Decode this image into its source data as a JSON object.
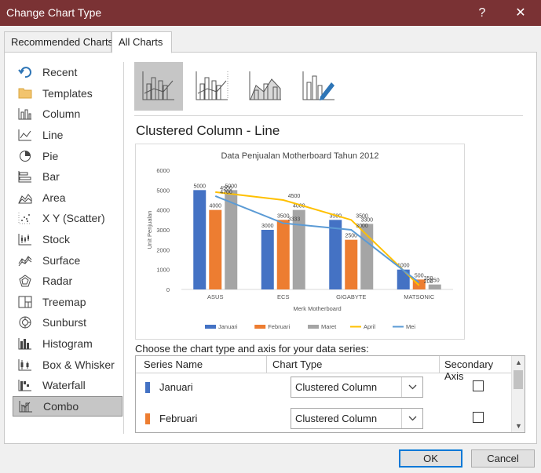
{
  "window": {
    "title": "Change Chart Type",
    "help_label": "?",
    "close_label": "✕"
  },
  "tabs": [
    {
      "label": "Recommended Charts"
    },
    {
      "label": "All Charts"
    }
  ],
  "sidebar": {
    "items": [
      {
        "label": "Recent",
        "icon": "recent-icon"
      },
      {
        "label": "Templates",
        "icon": "folder-icon"
      },
      {
        "label": "Column",
        "icon": "column-chart-icon"
      },
      {
        "label": "Line",
        "icon": "line-chart-icon"
      },
      {
        "label": "Pie",
        "icon": "pie-chart-icon"
      },
      {
        "label": "Bar",
        "icon": "bar-chart-icon"
      },
      {
        "label": "Area",
        "icon": "area-chart-icon"
      },
      {
        "label": "X Y (Scatter)",
        "icon": "scatter-chart-icon"
      },
      {
        "label": "Stock",
        "icon": "stock-chart-icon"
      },
      {
        "label": "Surface",
        "icon": "surface-chart-icon"
      },
      {
        "label": "Radar",
        "icon": "radar-chart-icon"
      },
      {
        "label": "Treemap",
        "icon": "treemap-icon"
      },
      {
        "label": "Sunburst",
        "icon": "sunburst-icon"
      },
      {
        "label": "Histogram",
        "icon": "histogram-icon"
      },
      {
        "label": "Box & Whisker",
        "icon": "box-whisker-icon"
      },
      {
        "label": "Waterfall",
        "icon": "waterfall-icon"
      },
      {
        "label": "Combo",
        "icon": "combo-chart-icon",
        "selected": true
      }
    ]
  },
  "subtypes": [
    {
      "icon": "clustered-column-line-icon",
      "selected": true
    },
    {
      "icon": "clustered-column-line-secondary-axis-icon"
    },
    {
      "icon": "stacked-area-clustered-column-icon"
    },
    {
      "icon": "custom-combination-icon"
    }
  ],
  "selected_type_title": "Clustered Column - Line",
  "chart_data": {
    "type": "bar",
    "title": "Data Penjualan Motherboard Tahun 2012",
    "xlabel": "Merk Motherboard",
    "ylabel": "Unit Penjualan",
    "categories": [
      "ASUS",
      "ECS",
      "GIGABYTE",
      "MATSONIC"
    ],
    "ylim": [
      0,
      6000
    ],
    "yticks": [
      "0",
      "1000",
      "2000",
      "3000",
      "4000",
      "5000",
      "6000"
    ],
    "grid": false,
    "legend_position": "bottom",
    "series": [
      {
        "name": "Januari",
        "type": "bar",
        "color": "#4472c4",
        "values": [
          5000,
          3000,
          3500,
          1000
        ],
        "labels": [
          "5000",
          "3000",
          "3500",
          "1000"
        ]
      },
      {
        "name": "Februari",
        "type": "bar",
        "color": "#ed7d31",
        "values": [
          4000,
          3500,
          2500,
          500
        ],
        "labels": [
          "4000",
          "3500",
          "2500",
          "500"
        ]
      },
      {
        "name": "Maret",
        "type": "bar",
        "color": "#a5a5a5",
        "values": [
          5000,
          4000,
          3300,
          250
        ],
        "labels": [
          "5000",
          "4000",
          "3300",
          "250"
        ]
      },
      {
        "name": "April",
        "type": "line",
        "color": "#ffc000",
        "values": [
          4900,
          4500,
          3500,
          200
        ],
        "labels": [
          "4900",
          "4500",
          "3500",
          "200"
        ]
      },
      {
        "name": "Mei",
        "type": "line",
        "color": "#5b9bd5",
        "values": [
          4700,
          3333,
          3000,
          350
        ],
        "labels": [
          "4700",
          "3333",
          "3000",
          "350"
        ]
      }
    ]
  },
  "series_section": {
    "label": "Choose the chart type and axis for your data series:",
    "headers": {
      "series_name": "Series Name",
      "chart_type": "Chart Type",
      "secondary_axis": "Secondary Axis"
    },
    "rows": [
      {
        "name": "Januari",
        "color": "#4472c4",
        "chart_type": "Clustered Column",
        "secondary": false
      },
      {
        "name": "Februari",
        "color": "#ed7d31",
        "chart_type": "Clustered Column",
        "secondary": false
      }
    ]
  },
  "buttons": {
    "ok": "OK",
    "cancel": "Cancel"
  }
}
